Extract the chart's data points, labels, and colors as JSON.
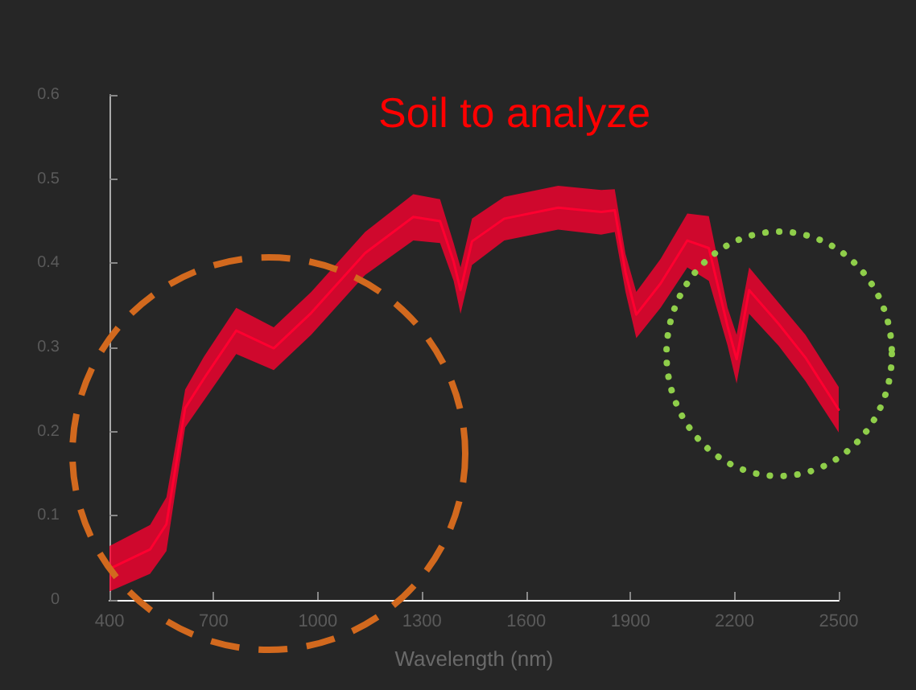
{
  "chart_data": {
    "type": "line",
    "title": "Soil to analyze",
    "xlabel": "Wavelength (nm)",
    "x": [
      400,
      517,
      564,
      618,
      672,
      765,
      873,
      981,
      1136,
      1275,
      1352,
      1391,
      1411,
      1444,
      1537,
      1692,
      1816,
      1855,
      1886,
      1917,
      1987,
      2064,
      2126,
      2180,
      2206,
      2242,
      2327,
      2404,
      2500
    ],
    "series": [
      {
        "color": "#ff0030",
        "lower": [
          0.01,
          0.031,
          0.058,
          0.205,
          0.237,
          0.292,
          0.273,
          0.315,
          0.386,
          0.427,
          0.424,
          0.379,
          0.34,
          0.398,
          0.427,
          0.44,
          0.434,
          0.437,
          0.366,
          0.311,
          0.347,
          0.395,
          0.379,
          0.302,
          0.257,
          0.34,
          0.302,
          0.26,
          0.199
        ],
        "values": [
          0.037,
          0.06,
          0.09,
          0.228,
          0.263,
          0.32,
          0.299,
          0.341,
          0.412,
          0.455,
          0.45,
          0.402,
          0.368,
          0.426,
          0.453,
          0.466,
          0.461,
          0.463,
          0.389,
          0.339,
          0.376,
          0.427,
          0.418,
          0.325,
          0.286,
          0.368,
          0.328,
          0.288,
          0.226
        ],
        "upper": [
          0.064,
          0.089,
          0.122,
          0.25,
          0.289,
          0.347,
          0.324,
          0.366,
          0.437,
          0.482,
          0.476,
          0.424,
          0.395,
          0.453,
          0.479,
          0.492,
          0.487,
          0.488,
          0.411,
          0.366,
          0.405,
          0.459,
          0.456,
          0.347,
          0.315,
          0.395,
          0.353,
          0.315,
          0.253
        ]
      }
    ],
    "xlim": [
      400,
      2500
    ],
    "xticks": [
      400,
      700,
      1000,
      1300,
      1600,
      1900,
      2200,
      2500
    ],
    "ylim": [
      0,
      0.6
    ],
    "yticks": [
      0,
      0.1,
      0.2,
      0.3,
      0.4,
      0.5,
      0.6
    ],
    "grid": false,
    "marker": "none",
    "line_style": "solid"
  }
}
